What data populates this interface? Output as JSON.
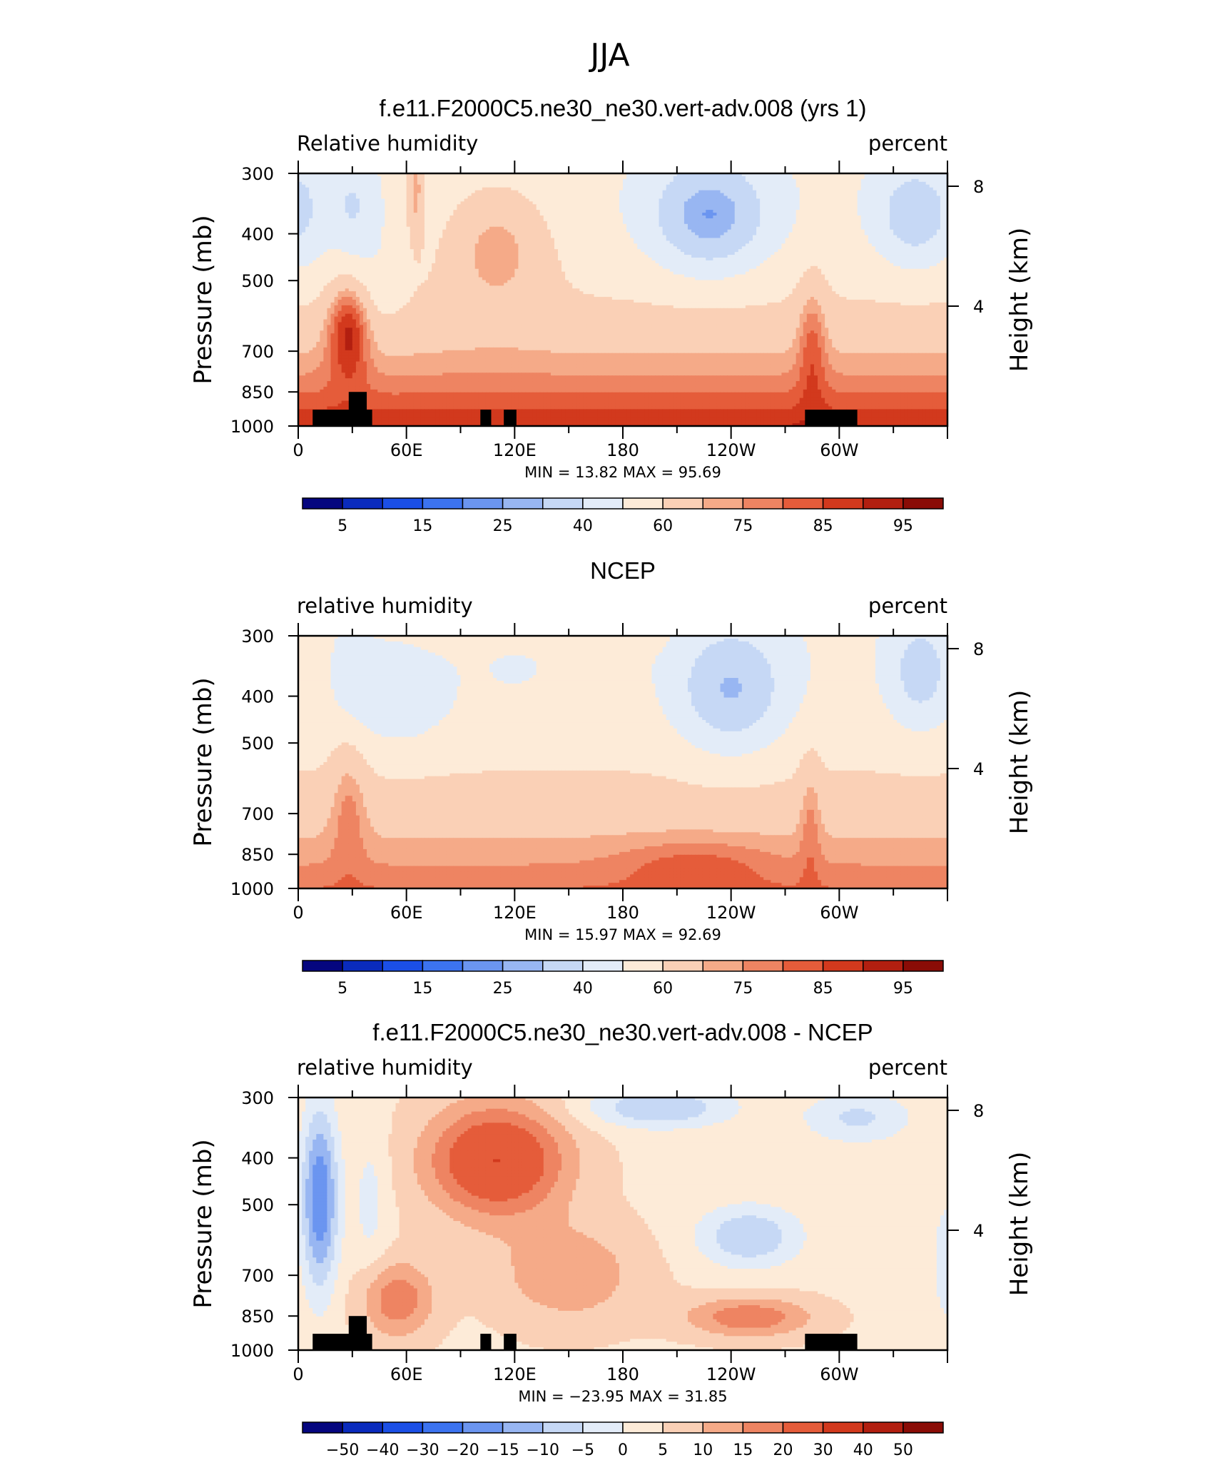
{
  "figure": {
    "suptitle": "JJA"
  },
  "chart_data": [
    {
      "type": "heatmap",
      "title": "f.e11.F2000C5.ne30_ne30.vert-adv.008 (yrs 1)",
      "left_string": "Relative humidity",
      "right_string": "percent",
      "xlabel": "",
      "ylabel": "Pressure (mb)",
      "ylabel_right": "Height (km)",
      "x_tick_labels": [
        "0",
        "60E",
        "120E",
        "180",
        "120W",
        "60W"
      ],
      "y_tick_labels": [
        "300",
        "400",
        "500",
        "700",
        "850",
        "1000"
      ],
      "y_ticks": [
        300,
        400,
        500,
        700,
        850,
        1000
      ],
      "right_tick_labels": [
        "8",
        "4"
      ],
      "right_ticks_km": [
        8,
        4
      ],
      "xlim": [
        0,
        360
      ],
      "ylim": [
        1000,
        300
      ],
      "y_scale": "log",
      "min_max_text": "MIN =   13.82   MAX =   95.69",
      "min": 13.82,
      "max": 95.69,
      "colorbar_labels": [
        "5",
        "15",
        "25",
        "40",
        "60",
        "75",
        "85",
        "95"
      ],
      "levels": [
        5,
        10,
        15,
        20,
        25,
        30,
        40,
        50,
        60,
        70,
        75,
        80,
        85,
        90,
        95
      ],
      "field": "model",
      "topography": true
    },
    {
      "type": "heatmap",
      "title": "NCEP",
      "left_string": "relative humidity",
      "right_string": "percent",
      "xlabel": "",
      "ylabel": "Pressure (mb)",
      "ylabel_right": "Height (km)",
      "x_tick_labels": [
        "0",
        "60E",
        "120E",
        "180",
        "120W",
        "60W"
      ],
      "y_tick_labels": [
        "300",
        "400",
        "500",
        "700",
        "850",
        "1000"
      ],
      "y_ticks": [
        300,
        400,
        500,
        700,
        850,
        1000
      ],
      "right_tick_labels": [
        "8",
        "4"
      ],
      "right_ticks_km": [
        8,
        4
      ],
      "xlim": [
        0,
        360
      ],
      "ylim": [
        1000,
        300
      ],
      "y_scale": "log",
      "min_max_text": "MIN =   15.97   MAX =   92.69",
      "min": 15.97,
      "max": 92.69,
      "colorbar_labels": [
        "5",
        "15",
        "25",
        "40",
        "60",
        "75",
        "85",
        "95"
      ],
      "levels": [
        5,
        10,
        15,
        20,
        25,
        30,
        40,
        50,
        60,
        70,
        75,
        80,
        85,
        90,
        95
      ],
      "field": "obs",
      "topography": false
    },
    {
      "type": "heatmap",
      "title": "f.e11.F2000C5.ne30_ne30.vert-adv.008 - NCEP",
      "left_string": "relative humidity",
      "right_string": "percent",
      "xlabel": "",
      "ylabel": "Pressure (mb)",
      "ylabel_right": "Height (km)",
      "x_tick_labels": [
        "0",
        "60E",
        "120E",
        "180",
        "120W",
        "60W"
      ],
      "y_tick_labels": [
        "300",
        "400",
        "500",
        "700",
        "850",
        "1000"
      ],
      "y_ticks": [
        300,
        400,
        500,
        700,
        850,
        1000
      ],
      "right_tick_labels": [
        "8",
        "4"
      ],
      "right_ticks_km": [
        8,
        4
      ],
      "xlim": [
        0,
        360
      ],
      "ylim": [
        1000,
        300
      ],
      "y_scale": "log",
      "min_max_text": "MIN =  −23.95   MAX =   31.85",
      "min": -23.95,
      "max": 31.85,
      "colorbar_labels": [
        "−50",
        "−40",
        "−30",
        "−20",
        "−15",
        "−10",
        "−5",
        "0",
        "5",
        "10",
        "15",
        "20",
        "30",
        "40",
        "50"
      ],
      "levels": [
        -50,
        -40,
        -30,
        -20,
        -15,
        -10,
        -5,
        0,
        5,
        10,
        15,
        20,
        30,
        40,
        50
      ],
      "field": "diff",
      "topography": true
    }
  ],
  "colors": {
    "palette": [
      "#05067f",
      "#0a2bbd",
      "#1b4fe6",
      "#3c73f0",
      "#6b95f0",
      "#98b6f2",
      "#c6d8f5",
      "#e3ecf8",
      "#fdebd8",
      "#fad0b6",
      "#f5aa88",
      "#ee8462",
      "#e55c3a",
      "#d2391d",
      "#b21f10",
      "#8a0c06"
    ],
    "topography": "#000000",
    "frame": "#000000"
  },
  "topography_blocks": [
    {
      "lon": [
        8,
        41
      ],
      "p_top": 925
    },
    {
      "lon": [
        28,
        38
      ],
      "p_top": 850
    },
    {
      "lon": [
        101,
        107
      ],
      "p_top": 925
    },
    {
      "lon": [
        114,
        121
      ],
      "p_top": 925
    },
    {
      "lon": [
        281,
        310
      ],
      "p_top": 925
    }
  ]
}
